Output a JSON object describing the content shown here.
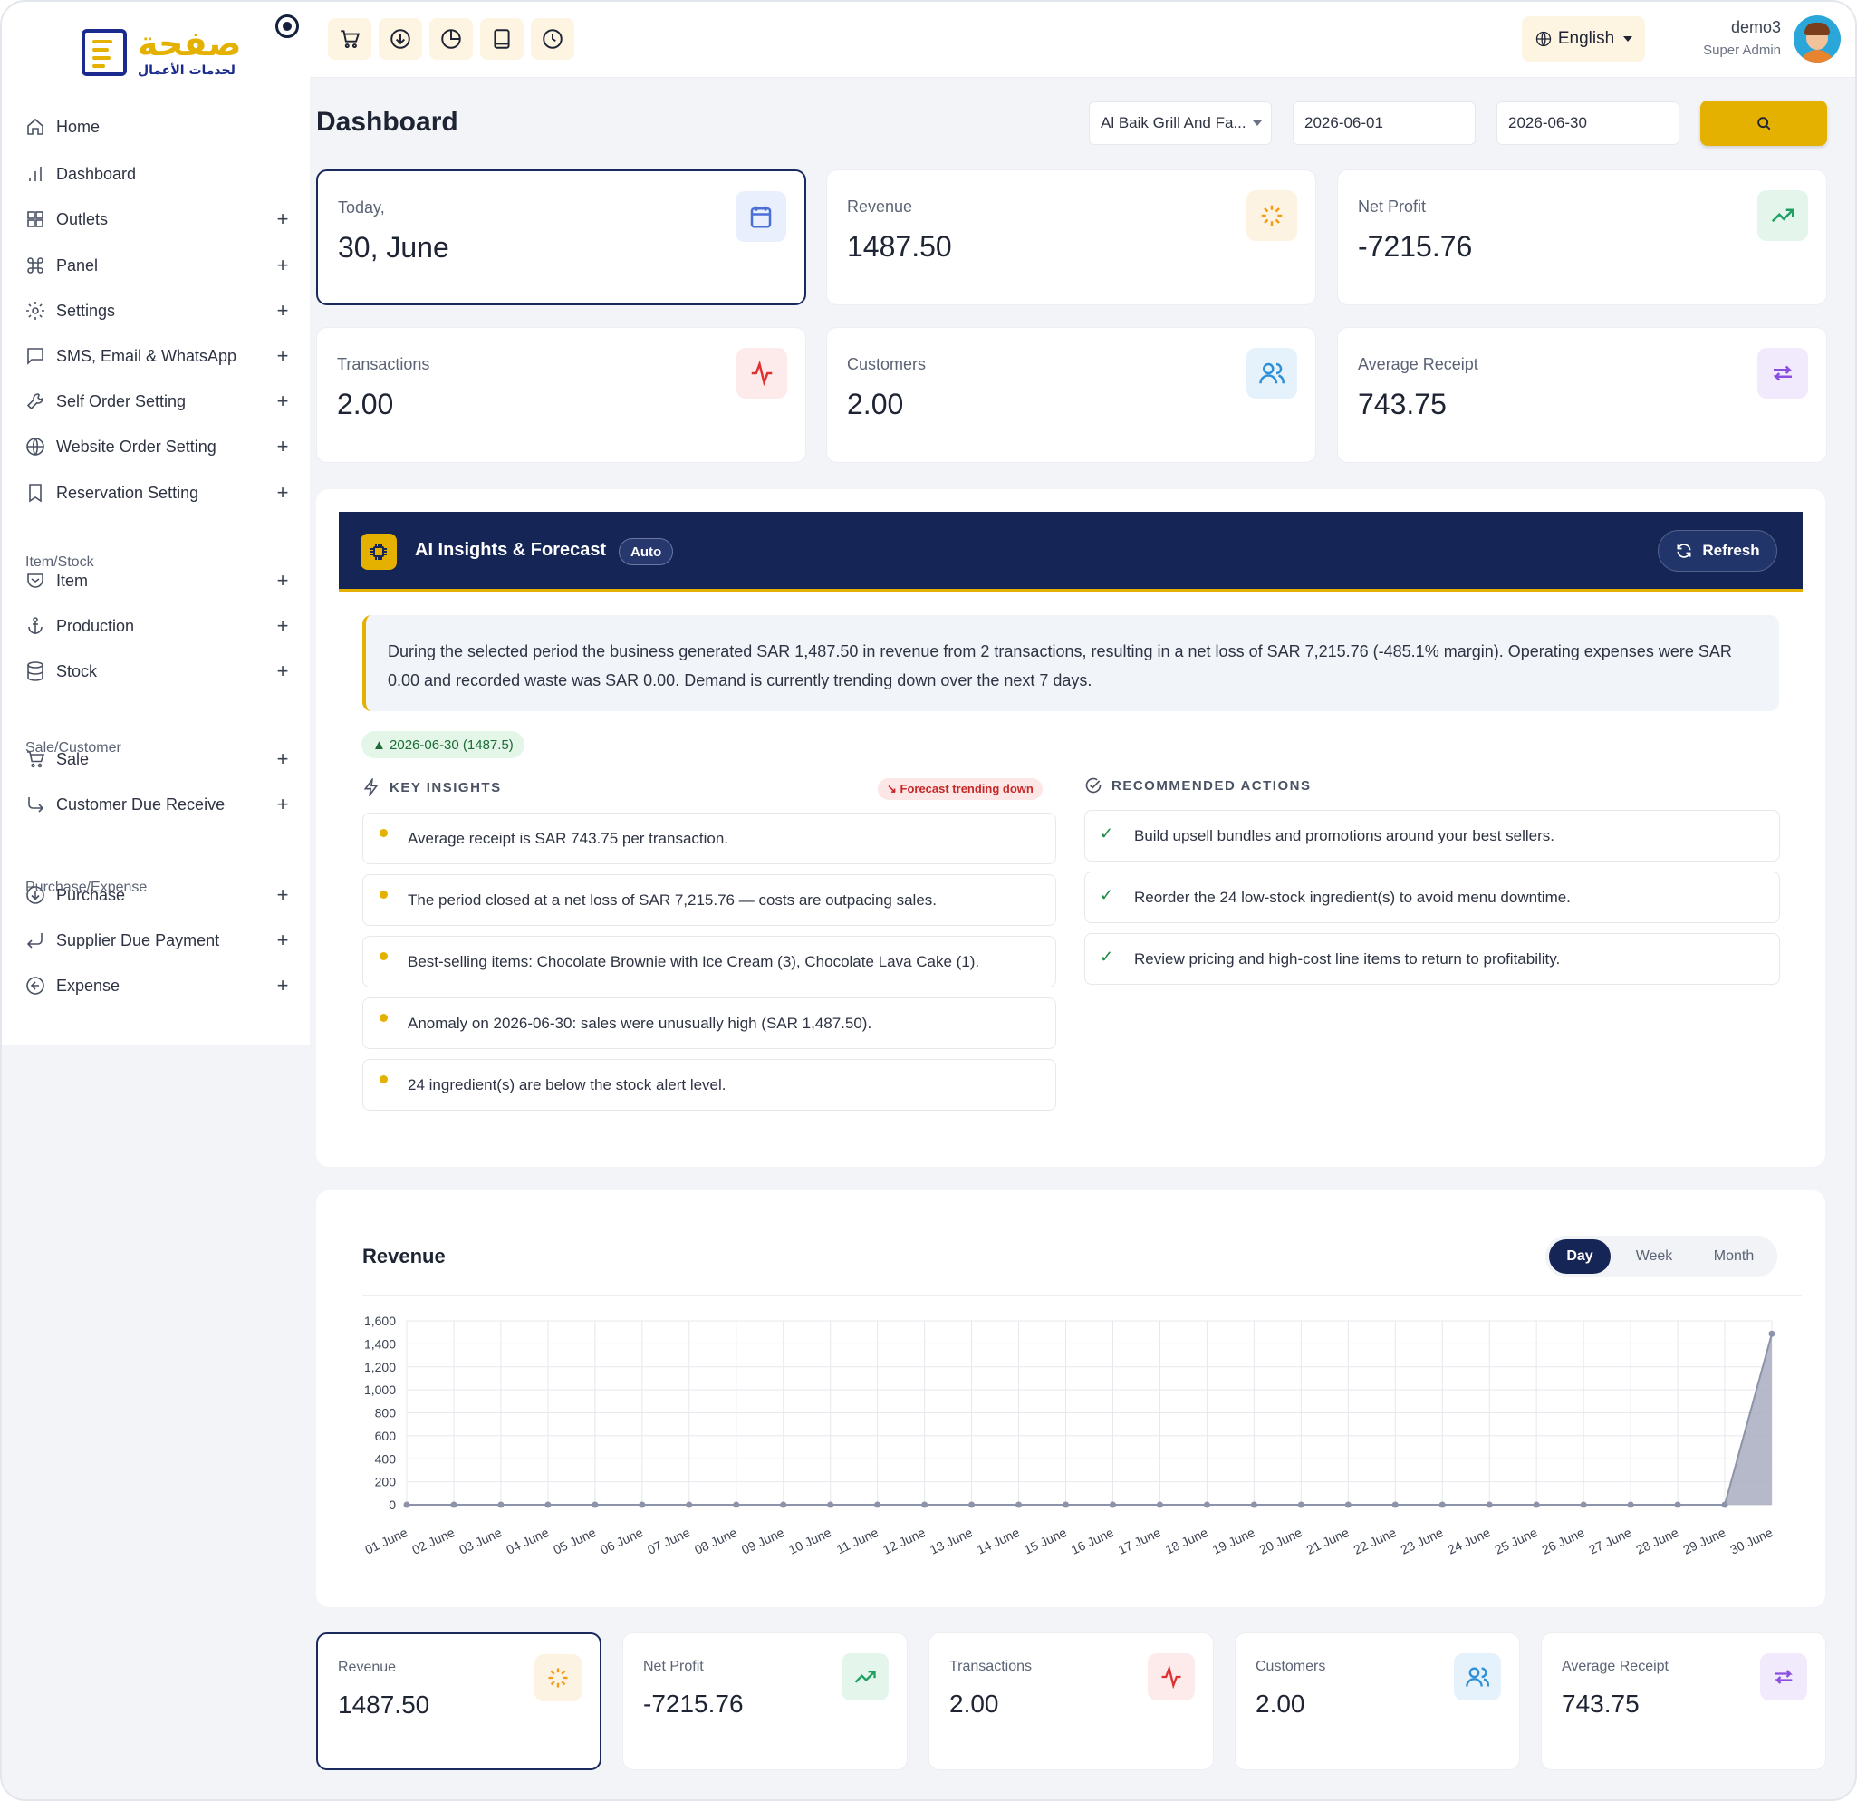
{
  "brand": {
    "name_ar": "صفحة",
    "tagline_ar": "لخدمات الأعمال"
  },
  "sidebar": {
    "items": [
      {
        "label": "Home",
        "icon": "home-icon",
        "expandable": false
      },
      {
        "label": "Dashboard",
        "icon": "bar-chart-icon",
        "expandable": false
      },
      {
        "label": "Outlets",
        "icon": "grid-icon",
        "expandable": true
      },
      {
        "label": "Panel",
        "icon": "command-icon",
        "expandable": true
      },
      {
        "label": "Settings",
        "icon": "gear-icon",
        "expandable": true
      },
      {
        "label": "SMS, Email & WhatsApp",
        "icon": "message-icon",
        "expandable": true
      },
      {
        "label": "Self Order Setting",
        "icon": "wrench-icon",
        "expandable": true
      },
      {
        "label": "Website Order Setting",
        "icon": "globe-icon",
        "expandable": true
      },
      {
        "label": "Reservation Setting",
        "icon": "bookmark-icon",
        "expandable": true
      },
      {
        "label": "Item",
        "icon": "shield-icon",
        "expandable": true
      },
      {
        "label": "Production",
        "icon": "anchor-icon",
        "expandable": true
      },
      {
        "label": "Stock",
        "icon": "database-icon",
        "expandable": true
      },
      {
        "label": "Sale",
        "icon": "cart-icon",
        "expandable": true
      },
      {
        "label": "Customer Due Receive",
        "icon": "corner-down-right-icon",
        "expandable": true
      },
      {
        "label": "Purchase",
        "icon": "arrow-down-circle-icon",
        "expandable": true
      },
      {
        "label": "Supplier Due Payment",
        "icon": "corner-down-left-icon",
        "expandable": true
      },
      {
        "label": "Expense",
        "icon": "arrow-left-circle-icon",
        "expandable": true
      }
    ],
    "sections": [
      "Item/Stock",
      "Sale/Customer",
      "Purchase/Expense"
    ],
    "plus_symbol": "+"
  },
  "topbar": {
    "quick_icons": [
      "cart-icon",
      "download-icon",
      "pie-chart-icon",
      "book-icon",
      "clock-icon"
    ],
    "language": "English",
    "user": {
      "name": "demo3",
      "role": "Super Admin"
    }
  },
  "header": {
    "title": "Dashboard",
    "outlet": "Al Baik Grill And Fa...",
    "date_from": "2026-06-01",
    "date_to": "2026-06-30"
  },
  "stats": [
    {
      "label": "Today,",
      "value": "30, June",
      "icon": "calendar-icon",
      "color": "#4a6fd6",
      "bg": "#e9effc"
    },
    {
      "label": "Revenue",
      "value": "1487.50",
      "icon": "loader-icon",
      "color": "#f39c12",
      "bg": "#fdf3e3"
    },
    {
      "label": "Net Profit",
      "value": "-7215.76",
      "icon": "trending-up-icon",
      "color": "#1fa060",
      "bg": "#e4f6ec"
    },
    {
      "label": "Transactions",
      "value": "2.00",
      "icon": "activity-icon",
      "color": "#e03131",
      "bg": "#fdeaea"
    },
    {
      "label": "Customers",
      "value": "2.00",
      "icon": "users-icon",
      "color": "#2f8fd6",
      "bg": "#e6f2fb"
    },
    {
      "label": "Average Receipt",
      "value": "743.75",
      "icon": "repeat-icon",
      "color": "#8a4fe0",
      "bg": "#f1e9fc"
    }
  ],
  "ai": {
    "title": "AI Insights & Forecast",
    "badge": "Auto",
    "refresh_label": "Refresh",
    "summary": "During the selected period the business generated SAR 1,487.50 in revenue from 2 transactions, resulting in a net loss of SAR 7,215.76 (-485.1% margin). Operating expenses were SAR 0.00 and recorded waste was SAR 0.00. Demand is currently trending down over the next 7 days.",
    "peak_pill": "▲ 2026-06-30 (1487.5)",
    "insights_title": "KEY INSIGHTS",
    "forecast_pill": "↘ Forecast trending down",
    "insights": [
      "Average receipt is SAR 743.75 per transaction.",
      "The period closed at a net loss of SAR 7,215.76 — costs are outpacing sales.",
      "Best-selling items: Chocolate Brownie with Ice Cream (3), Chocolate Lava Cake (1).",
      "Anomaly on 2026-06-30: sales were unusually high (SAR 1,487.50).",
      "24 ingredient(s) are below the stock alert level."
    ],
    "actions_title": "RECOMMENDED ACTIONS",
    "check_symbol": "✓",
    "actions": [
      "Build upsell bundles and promotions around your best sellers.",
      "Reorder the 24 low-stock ingredient(s) to avoid menu downtime.",
      "Review pricing and high-cost line items to return to profitability."
    ]
  },
  "revenue_chart": {
    "title": "Revenue",
    "toggle": [
      "Day",
      "Week",
      "Month"
    ],
    "active": "Day"
  },
  "chart_data": {
    "type": "area",
    "title": "Revenue",
    "x": [
      "01 June",
      "02 June",
      "03 June",
      "04 June",
      "05 June",
      "06 June",
      "07 June",
      "08 June",
      "09 June",
      "10 June",
      "11 June",
      "12 June",
      "13 June",
      "14 June",
      "15 June",
      "16 June",
      "17 June",
      "18 June",
      "19 June",
      "20 June",
      "21 June",
      "22 June",
      "23 June",
      "24 June",
      "25 June",
      "26 June",
      "27 June",
      "28 June",
      "29 June",
      "30 June"
    ],
    "values": [
      0,
      0,
      0,
      0,
      0,
      0,
      0,
      0,
      0,
      0,
      0,
      0,
      0,
      0,
      0,
      0,
      0,
      0,
      0,
      0,
      0,
      0,
      0,
      0,
      0,
      0,
      0,
      0,
      0,
      1487.5
    ],
    "ylim": [
      0,
      1600
    ],
    "yticks": [
      "0",
      "200",
      "400",
      "600",
      "800",
      "1,000",
      "1,200",
      "1,400",
      "1,600"
    ],
    "grid": true,
    "fill_color": "#a9adc0",
    "line_color": "#8d93a8"
  },
  "bottom_stats": [
    {
      "label": "Revenue",
      "value": "1487.50",
      "icon": "loader-icon",
      "color": "#f39c12",
      "bg": "#fdf3e3"
    },
    {
      "label": "Net Profit",
      "value": "-7215.76",
      "icon": "trending-up-icon",
      "color": "#1fa060",
      "bg": "#e4f6ec"
    },
    {
      "label": "Transactions",
      "value": "2.00",
      "icon": "activity-icon",
      "color": "#e03131",
      "bg": "#fdeaea"
    },
    {
      "label": "Customers",
      "value": "2.00",
      "icon": "users-icon",
      "color": "#2f8fd6",
      "bg": "#e6f2fb"
    },
    {
      "label": "Average Receipt",
      "value": "743.75",
      "icon": "repeat-icon",
      "color": "#8a4fe0",
      "bg": "#f1e9fc"
    }
  ]
}
